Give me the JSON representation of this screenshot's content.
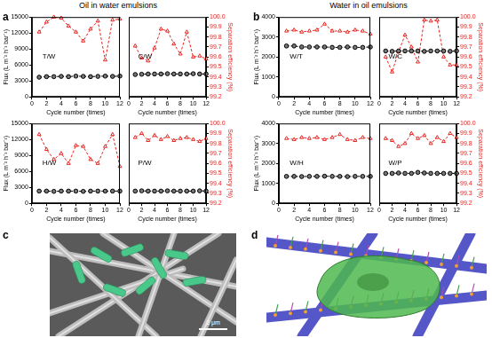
{
  "chart_data": [
    {
      "type": "line",
      "panel": "a",
      "title": "Oil in water emulsions",
      "x_label": "Cycle number (times)",
      "y_label": "Flux (L m⁻² h⁻¹ bar⁻¹)",
      "y2_label": "Separation efficiency (%)",
      "x": [
        1,
        2,
        3,
        4,
        5,
        6,
        7,
        8,
        9,
        10,
        11,
        12
      ],
      "xlim": [
        0,
        12
      ],
      "xticks": [
        0,
        2,
        4,
        6,
        8,
        10,
        12
      ],
      "ylim": [
        0,
        15000
      ],
      "yticks": [
        0,
        3000,
        6000,
        9000,
        12000,
        15000
      ],
      "y2lim": [
        99.2,
        100
      ],
      "y2ticks": [
        99.2,
        99.3,
        99.4,
        99.5,
        99.6,
        99.7,
        99.8,
        99.9,
        {
          "value": 100,
          "label": "100.0"
        }
      ],
      "subplots": [
        {
          "label": "T/W",
          "series": [
            {
              "color": "#000000",
              "marker": "circle",
              "line_style": "dashed",
              "values": [
                3700,
                3800,
                3800,
                3850,
                3800,
                3900,
                3850,
                3800,
                3850,
                3900,
                3850,
                3900
              ]
            },
            {
              "color": "#e8231f",
              "marker": "triangle",
              "line_style": "dashed",
              "axis": "y2",
              "values": [
                99.85,
                99.95,
                100,
                99.99,
                99.91,
                99.85,
                99.76,
                99.88,
                99.96,
                99.57,
                99.97,
                99.98
              ]
            }
          ]
        },
        {
          "label": "C/W",
          "series": [
            {
              "color": "#000000",
              "marker": "circle",
              "line_style": "dashed",
              "values": [
                4200,
                4250,
                4300,
                4300,
                4300,
                4350,
                4300,
                4300,
                4300,
                4350,
                4300,
                4300
              ]
            },
            {
              "color": "#e8231f",
              "marker": "triangle",
              "line_style": "dashed",
              "axis": "y2",
              "values": [
                99.71,
                99.59,
                99.56,
                99.69,
                99.88,
                99.86,
                99.73,
                99.63,
                99.85,
                99.6,
                99.61,
                99.58
              ]
            }
          ]
        }
      ]
    },
    {
      "type": "line",
      "panel": "b",
      "title": "Water in oil emulsions",
      "x_label": "Cycle number (times)",
      "y_label": "Flux (L m⁻² h⁻¹ bar⁻¹)",
      "y2_label": "Separation efficiency (%)",
      "x": [
        1,
        2,
        3,
        4,
        5,
        6,
        7,
        8,
        9,
        10,
        11,
        12
      ],
      "xlim": [
        0,
        12
      ],
      "xticks": [
        0,
        2,
        4,
        6,
        8,
        10,
        12
      ],
      "ylim": [
        0,
        4000
      ],
      "yticks": [
        0,
        1000,
        2000,
        3000,
        4000
      ],
      "y2lim": [
        99.2,
        100
      ],
      "y2ticks": [
        99.2,
        99.3,
        99.4,
        99.5,
        99.6,
        99.7,
        99.8,
        99.9,
        {
          "value": 100,
          "label": "100.0"
        }
      ],
      "subplots": [
        {
          "label": "W/T",
          "series": [
            {
              "color": "#000000",
              "marker": "circle",
              "line_style": "dashed",
              "values": [
                2550,
                2550,
                2500,
                2500,
                2500,
                2500,
                2480,
                2480,
                2500,
                2480,
                2480,
                2500
              ]
            },
            {
              "color": "#e8231f",
              "marker": "triangle",
              "line_style": "dashed",
              "axis": "y2",
              "values": [
                99.86,
                99.87,
                99.85,
                99.86,
                99.87,
                99.93,
                99.86,
                99.86,
                99.85,
                99.87,
                99.86,
                99.83
              ]
            }
          ]
        },
        {
          "label": "W/C",
          "series": [
            {
              "color": "#000000",
              "marker": "circle",
              "line_style": "dashed",
              "values": [
                2300,
                2280,
                2300,
                2300,
                2300,
                2300,
                2280,
                2300,
                2300,
                2300,
                2280,
                2300
              ]
            },
            {
              "color": "#e8231f",
              "marker": "triangle",
              "line_style": "dashed",
              "axis": "y2",
              "values": [
                99.6,
                99.45,
                99.65,
                99.82,
                99.7,
                99.55,
                99.97,
                99.96,
                99.97,
                99.6,
                99.52,
                99.52
              ]
            }
          ]
        }
      ]
    },
    {
      "type": "line",
      "x_label": "Cycle number (times)",
      "y_label": "Flux (L m⁻² h⁻¹ bar⁻¹)",
      "y2_label": "Separation efficiency (%)",
      "x": [
        1,
        2,
        3,
        4,
        5,
        6,
        7,
        8,
        9,
        10,
        11,
        12
      ],
      "xlim": [
        0,
        12
      ],
      "xticks": [
        0,
        2,
        4,
        6,
        8,
        10,
        12
      ],
      "ylim": [
        0,
        15000
      ],
      "yticks": [
        0,
        3000,
        6000,
        9000,
        12000,
        15000
      ],
      "y2lim": [
        99.2,
        100
      ],
      "y2ticks": [
        99.2,
        99.3,
        99.4,
        99.5,
        99.6,
        99.7,
        99.8,
        99.9,
        {
          "value": 100,
          "label": "100.0"
        }
      ],
      "subplots": [
        {
          "label": "H/W",
          "series": [
            {
              "color": "#000000",
              "marker": "circle",
              "line_style": "dashed",
              "values": [
                2300,
                2300,
                2250,
                2300,
                2300,
                2300,
                2250,
                2300,
                2300,
                2300,
                2300,
                2300
              ]
            },
            {
              "color": "#e8231f",
              "marker": "triangle",
              "line_style": "dashed",
              "axis": "y2",
              "values": [
                99.89,
                99.74,
                99.64,
                99.7,
                99.6,
                99.78,
                99.77,
                99.64,
                99.6,
                99.77,
                99.89,
                99.57
              ]
            }
          ]
        },
        {
          "label": "P/W",
          "series": [
            {
              "color": "#000000",
              "marker": "circle",
              "line_style": "dashed",
              "values": [
                2300,
                2350,
                2300,
                2300,
                2300,
                2350,
                2300,
                2300,
                2300,
                2300,
                2350,
                2300
              ]
            },
            {
              "color": "#e8231f",
              "marker": "triangle",
              "line_style": "dashed",
              "axis": "y2",
              "values": [
                99.86,
                99.9,
                99.83,
                99.88,
                99.84,
                99.87,
                99.83,
                99.85,
                99.86,
                99.84,
                99.82,
                99.85
              ]
            }
          ]
        }
      ]
    },
    {
      "type": "line",
      "x_label": "Cycle number (times)",
      "y_label": "Flux (L m⁻² h⁻¹ bar⁻¹)",
      "y2_label": "Separation efficiency (%)",
      "x": [
        1,
        2,
        3,
        4,
        5,
        6,
        7,
        8,
        9,
        10,
        11,
        12
      ],
      "xlim": [
        0,
        12
      ],
      "xticks": [
        0,
        2,
        4,
        6,
        8,
        10,
        12
      ],
      "ylim": [
        0,
        4000
      ],
      "yticks": [
        0,
        1000,
        2000,
        3000,
        4000
      ],
      "y2lim": [
        99.2,
        100
      ],
      "y2ticks": [
        99.2,
        99.3,
        99.4,
        99.5,
        99.6,
        99.7,
        99.8,
        99.9,
        {
          "value": 100,
          "label": "100.0"
        }
      ],
      "subplots": [
        {
          "label": "W/H",
          "series": [
            {
              "color": "#000000",
              "marker": "circle",
              "line_style": "dashed",
              "values": [
                1350,
                1350,
                1340,
                1350,
                1350,
                1360,
                1350,
                1350,
                1340,
                1350,
                1350,
                1350
              ]
            },
            {
              "color": "#e8231f",
              "marker": "triangle",
              "line_style": "dashed",
              "axis": "y2",
              "values": [
                99.85,
                99.84,
                99.86,
                99.85,
                99.86,
                99.84,
                99.86,
                99.89,
                99.84,
                99.83,
                99.86,
                99.85
              ]
            }
          ]
        },
        {
          "label": "W/P",
          "series": [
            {
              "color": "#000000",
              "marker": "circle",
              "line_style": "dashed",
              "values": [
                1500,
                1500,
                1520,
                1500,
                1500,
                1550,
                1520,
                1500,
                1500,
                1500,
                1500,
                1500
              ]
            },
            {
              "color": "#e8231f",
              "marker": "triangle",
              "line_style": "dashed",
              "axis": "y2",
              "values": [
                99.85,
                99.83,
                99.77,
                99.8,
                99.9,
                99.85,
                99.88,
                99.8,
                99.86,
                99.82,
                99.9,
                99.86
              ]
            }
          ]
        }
      ]
    }
  ],
  "images": [
    {
      "letter": "c",
      "scale_bar": "2 μm"
    },
    {
      "letter": "d"
    }
  ]
}
